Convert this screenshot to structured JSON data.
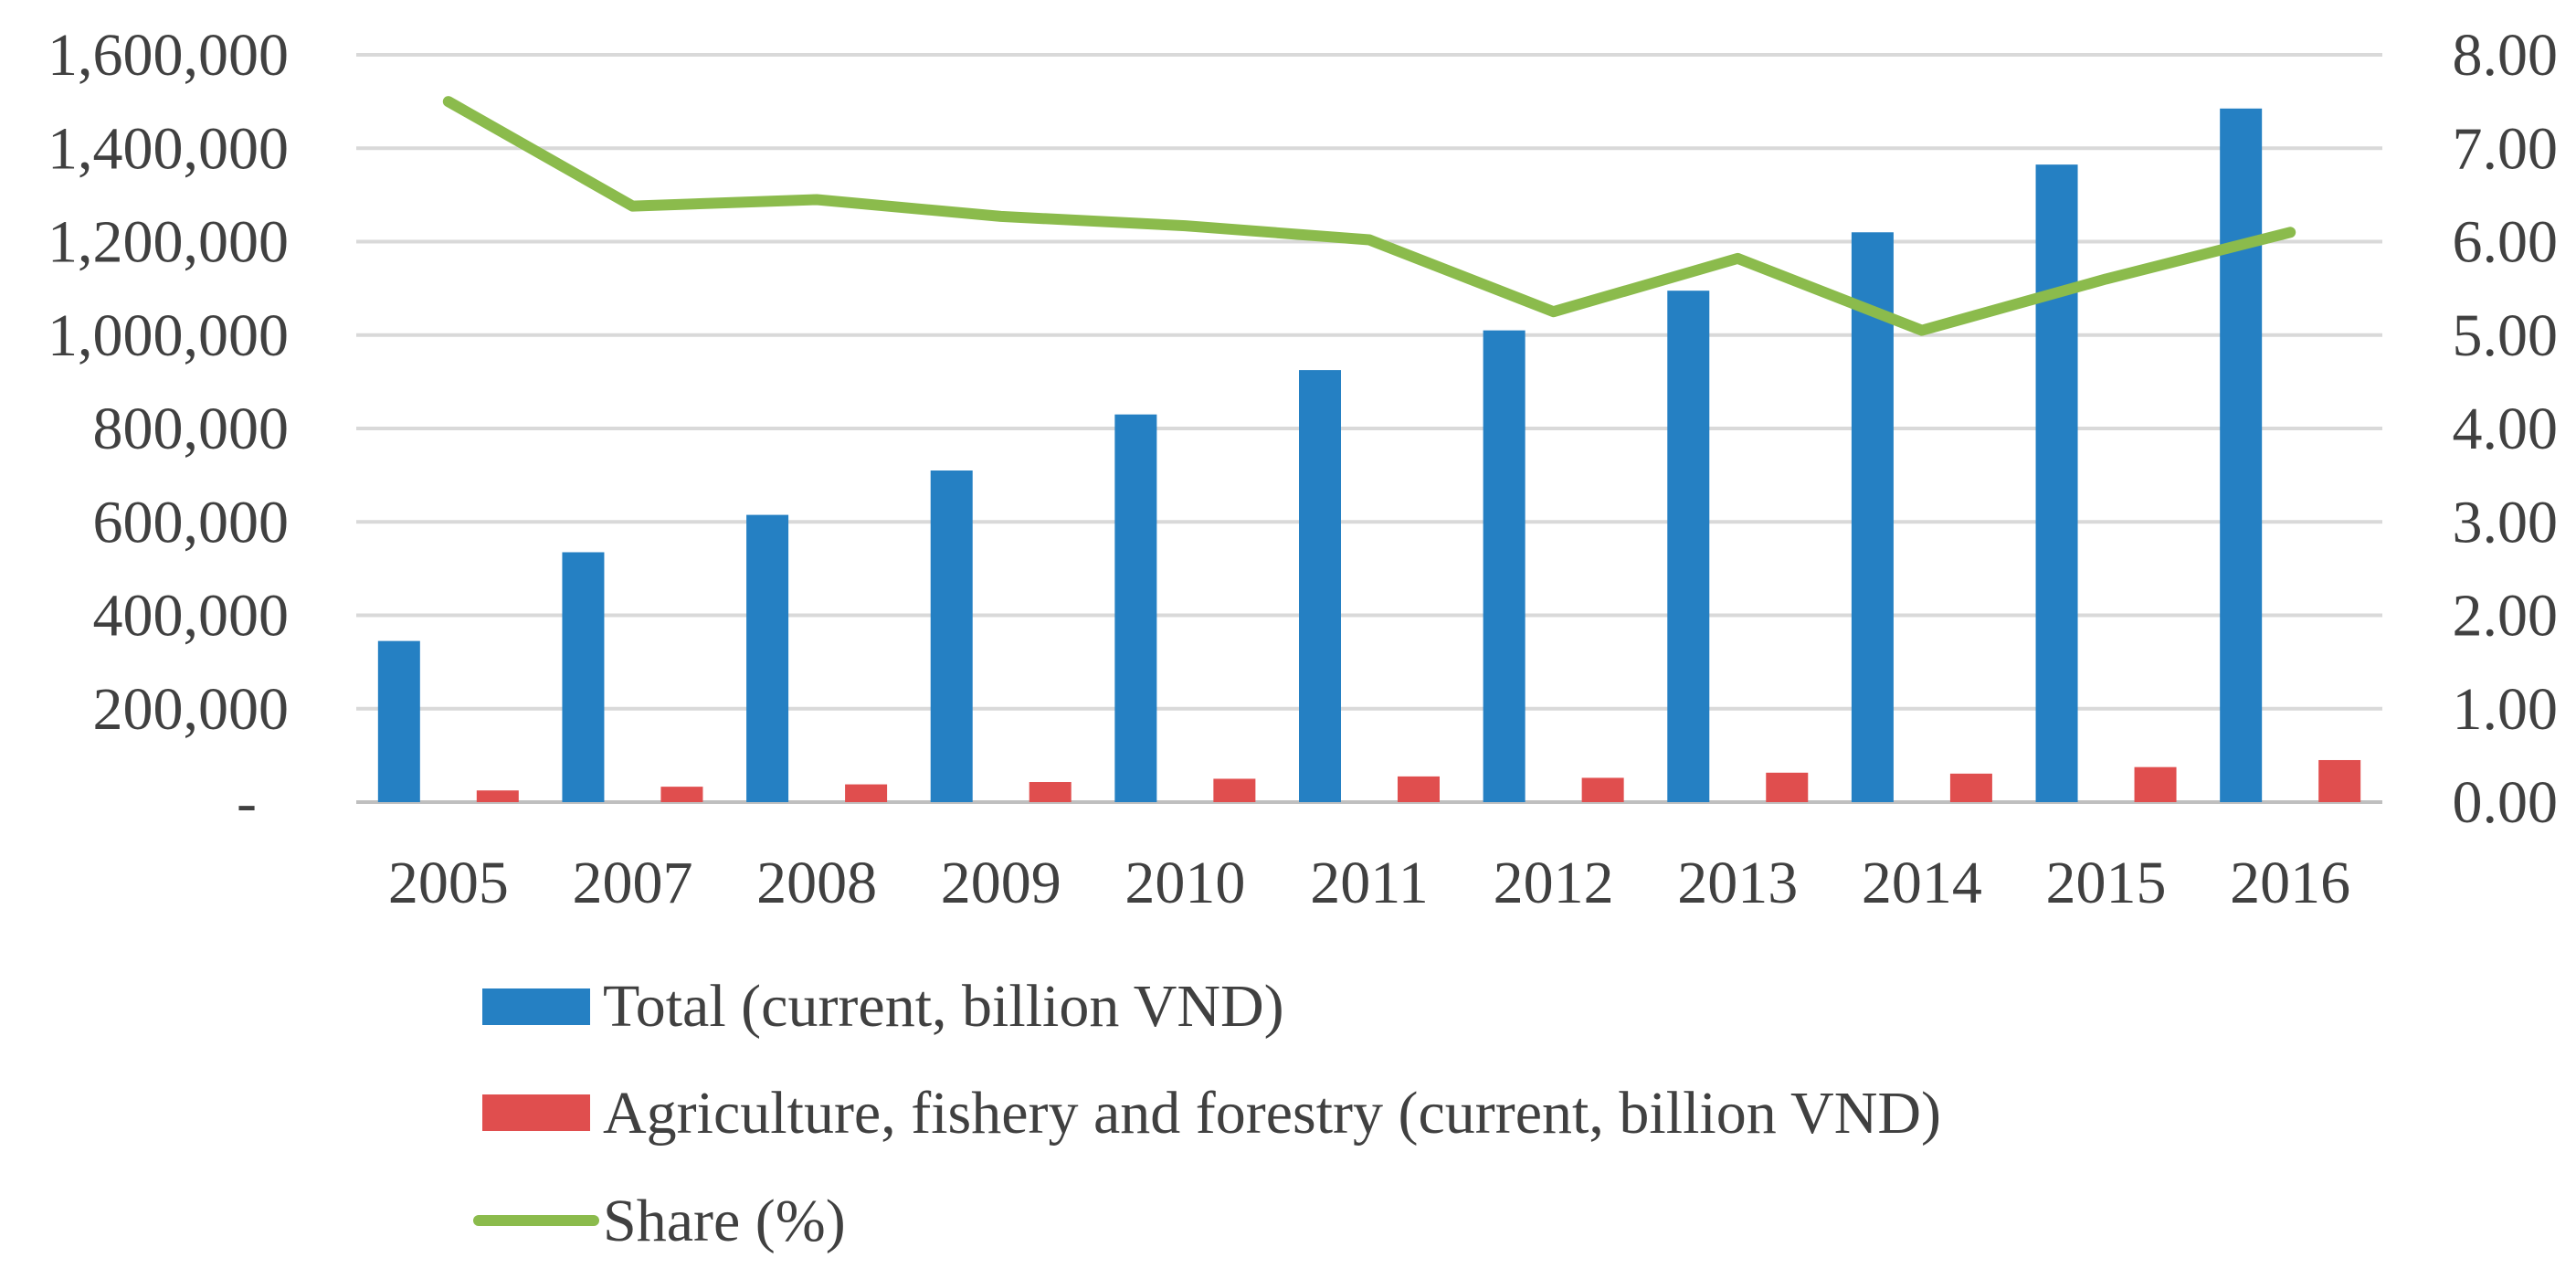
{
  "chart_data": {
    "type": "bar",
    "title": "",
    "categories": [
      "2005",
      "2007",
      "2008",
      "2009",
      "2010",
      "2011",
      "2012",
      "2013",
      "2014",
      "2015",
      "2016"
    ],
    "series": [
      {
        "name": "Total (current, billion VND)",
        "type": "bar",
        "axis": "left",
        "color": "#2580C3",
        "values": [
          345000,
          535000,
          615000,
          710000,
          830000,
          925000,
          1010000,
          1095000,
          1220000,
          1365000,
          1485000
        ]
      },
      {
        "name": "Agriculture, fishery and forestry (current, billion VND)",
        "type": "bar",
        "axis": "left",
        "color": "#E04E4E",
        "values": [
          25000,
          33000,
          38000,
          43000,
          50000,
          55000,
          52000,
          63000,
          61000,
          75000,
          90000
        ]
      },
      {
        "name": "Share (%)",
        "type": "line",
        "axis": "right",
        "color": "#8BBB4C",
        "values": [
          7.5,
          6.38,
          6.45,
          6.27,
          6.17,
          6.02,
          5.25,
          5.82,
          5.05,
          5.6,
          6.1
        ]
      }
    ],
    "y_left": {
      "min": 0,
      "max": 1600000,
      "ticks": [
        0,
        200000,
        400000,
        600000,
        800000,
        1000000,
        1200000,
        1400000,
        1600000
      ],
      "tick_labels": [
        "-",
        "200,000",
        "400,000",
        "600,000",
        "800,000",
        "1,000,000",
        "1,200,000",
        "1,400,000",
        "1,600,000"
      ]
    },
    "y_right": {
      "min": 0,
      "max": 8,
      "ticks": [
        0,
        1,
        2,
        3,
        4,
        5,
        6,
        7,
        8
      ],
      "tick_labels": [
        "0.00",
        "1.00",
        "2.00",
        "3.00",
        "4.00",
        "5.00",
        "6.00",
        "7.00",
        "8.00"
      ]
    },
    "grid": true,
    "legend_position": "bottom-left"
  },
  "colors": {
    "grid": "#D9D9D9",
    "axis": "#BFBFBF",
    "text": "#404040"
  }
}
